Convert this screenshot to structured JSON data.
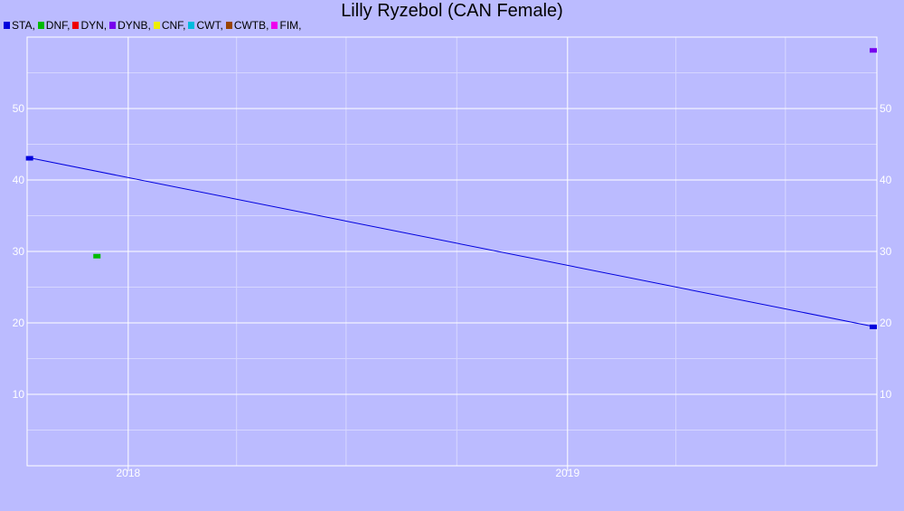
{
  "chart_data": {
    "type": "line",
    "title": "Lilly Ryzebol (CAN Female)",
    "legend": {
      "placement": "top-left",
      "entries": [
        {
          "label": "STA,",
          "color": "#0000dd"
        },
        {
          "label": "DNF,",
          "color": "#00bb00"
        },
        {
          "label": "DYN,",
          "color": "#ee0000"
        },
        {
          "label": "DYNB,",
          "color": "#7700ee"
        },
        {
          "label": "CNF,",
          "color": "#eeee00"
        },
        {
          "label": "CWT,",
          "color": "#00bbdd"
        },
        {
          "label": "CWTB,",
          "color": "#994400"
        },
        {
          "label": "FIM,",
          "color": "#ee00ee"
        }
      ]
    },
    "xlim": [
      "2017-10-09",
      "2019-09-15"
    ],
    "ylim": [
      0,
      60
    ],
    "x_ticks": [
      {
        "label": "2018",
        "value": "2018-01-01"
      },
      {
        "label": "2019",
        "value": "2019-01-01"
      }
    ],
    "x_minor_grid": [
      "2018-04-01",
      "2018-07-01",
      "2018-10-01",
      "2019-04-01",
      "2019-07-01"
    ],
    "y_ticks": [
      10,
      20,
      30,
      40,
      50
    ],
    "y_minor_grid": [
      5,
      15,
      25,
      35,
      45,
      55
    ],
    "grid": true,
    "series": [
      {
        "name": "STA",
        "color": "#0000dd",
        "points": [
          {
            "x": "2017-10-11",
            "y": 43.1
          },
          {
            "x": "2019-09-12",
            "y": 19.5
          }
        ]
      },
      {
        "name": "DNF",
        "color": "#00bb00",
        "points": [
          {
            "x": "2017-12-06",
            "y": 29.4
          }
        ]
      },
      {
        "name": "DYNB",
        "color": "#7700ee",
        "points": [
          {
            "x": "2019-09-12",
            "y": 58.2
          }
        ]
      }
    ]
  }
}
